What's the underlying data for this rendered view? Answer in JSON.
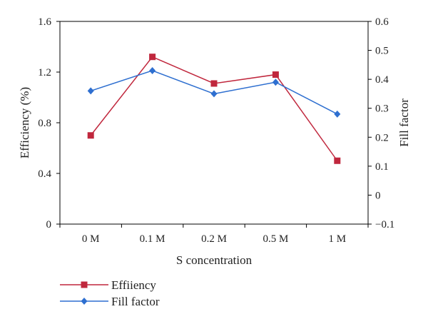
{
  "chart_data": {
    "type": "line",
    "title": "",
    "xlabel": "S concentration",
    "ylabel": "Efficiency (%)",
    "y2label": "Fill factor",
    "categories": [
      "0 M",
      "0.1 M",
      "0.2 M",
      "0.5 M",
      "1 M"
    ],
    "ylim": [
      0,
      1.6
    ],
    "yticks": [
      "0",
      "0.4",
      "0.8",
      "1.2",
      "1.6"
    ],
    "y2lim": [
      -0.1,
      0.6
    ],
    "y2ticks": [
      "−0.1",
      "0",
      "0.1",
      "0.2",
      "0.3",
      "0.4",
      "0.5",
      "0.6"
    ],
    "grid": false,
    "legend_position": "bottom-left",
    "series": [
      {
        "name": "Effiiency",
        "axis": "left",
        "marker": "square",
        "color": "#c0273d",
        "values": [
          0.7,
          1.32,
          1.11,
          1.18,
          0.5
        ]
      },
      {
        "name": "Fill factor",
        "axis": "right",
        "marker": "diamond",
        "color": "#2e6fd0",
        "values": [
          0.36,
          0.43,
          0.35,
          0.39,
          0.28
        ]
      }
    ]
  }
}
